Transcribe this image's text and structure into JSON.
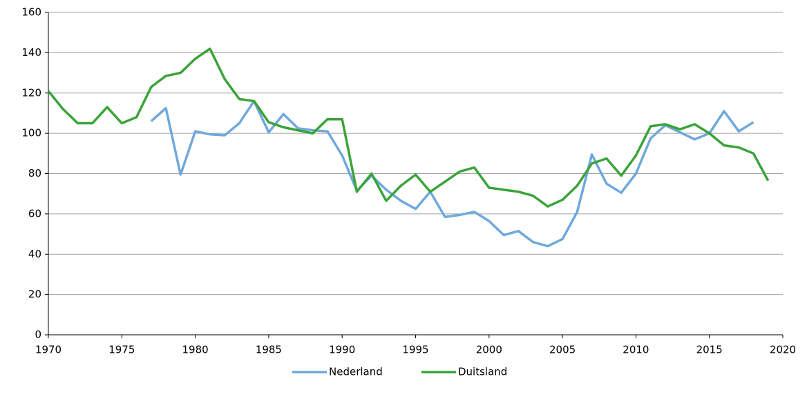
{
  "chart_data": {
    "type": "line",
    "x": [
      1970,
      1971,
      1972,
      1973,
      1974,
      1975,
      1976,
      1977,
      1978,
      1979,
      1980,
      1981,
      1982,
      1983,
      1984,
      1985,
      1986,
      1987,
      1988,
      1989,
      1990,
      1991,
      1992,
      1993,
      1994,
      1995,
      1996,
      1997,
      1998,
      1999,
      2000,
      2001,
      2002,
      2003,
      2004,
      2005,
      2006,
      2007,
      2008,
      2009,
      2010,
      2011,
      2012,
      2013,
      2014,
      2015,
      2016,
      2017,
      2018,
      2019
    ],
    "series": [
      {
        "name": "Nederland",
        "color": "#6fa8dc",
        "values": [
          null,
          null,
          null,
          null,
          null,
          null,
          null,
          106,
          112.5,
          79.5,
          101,
          99.5,
          99,
          105,
          116,
          100.5,
          109.5,
          102.5,
          101.5,
          101,
          89,
          71.5,
          79,
          72,
          66.5,
          62.5,
          71,
          58.5,
          59.5,
          61,
          56.5,
          49.5,
          51.5,
          46,
          44,
          47.5,
          61,
          89.5,
          75,
          70.5,
          80,
          97.5,
          104,
          100.5,
          97,
          100,
          111,
          101,
          105.5,
          null
        ]
      },
      {
        "name": "Duitsland",
        "color": "#3aa33a",
        "values": [
          121,
          112,
          105,
          105,
          113,
          105,
          108,
          123,
          128.5,
          130,
          137,
          142,
          127,
          117,
          116,
          105.5,
          103,
          101.5,
          100,
          107,
          107,
          71,
          80,
          66.5,
          74,
          79.5,
          71,
          76,
          81,
          83,
          73,
          72,
          71,
          69,
          63.7,
          67,
          74,
          85,
          87.5,
          79,
          89,
          103.5,
          104.5,
          102,
          104.5,
          100,
          94,
          93,
          90,
          76.5
        ]
      }
    ],
    "xlim": [
      1970,
      2020
    ],
    "xticks": [
      1970,
      1975,
      1980,
      1985,
      1990,
      1995,
      2000,
      2005,
      2010,
      2015,
      2020
    ],
    "ylim": [
      0,
      160
    ],
    "yticks": [
      0,
      20,
      40,
      60,
      80,
      100,
      120,
      140,
      160
    ],
    "grid": true,
    "legend": "bottom"
  }
}
